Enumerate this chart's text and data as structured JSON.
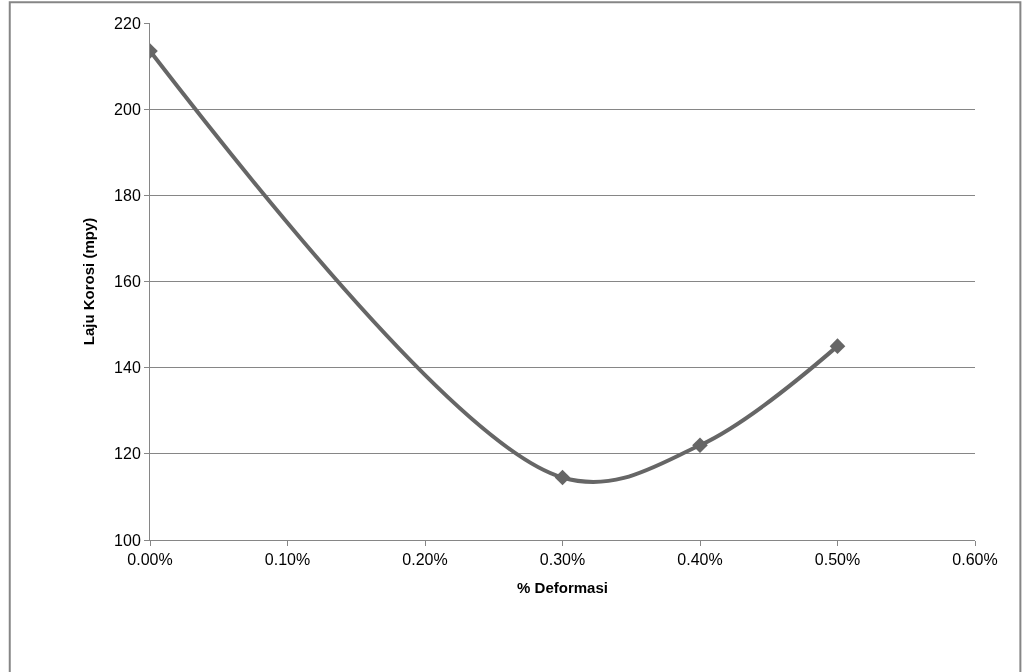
{
  "chart_data": {
    "type": "line",
    "xlabel": "% Deformasi",
    "ylabel": "Laju Korosi (mpy)",
    "x": [
      0,
      0.3,
      0.4,
      0.5
    ],
    "series": [
      {
        "color": "#666666",
        "values": [
          213.5,
          114.5,
          122,
          145
        ]
      }
    ],
    "xlim": [
      0,
      0.6
    ],
    "xticks": [
      {
        "value": 0,
        "label": "0.00%"
      },
      {
        "value": 0.1,
        "label": "0.10%"
      },
      {
        "value": 0.2,
        "label": "0.20%"
      },
      {
        "value": 0.3,
        "label": "0.30%"
      },
      {
        "value": 0.4,
        "label": "0.40%"
      },
      {
        "value": 0.5,
        "label": "0.50%"
      },
      {
        "value": 0.6,
        "label": "0.60%"
      }
    ],
    "ylim": [
      100,
      220
    ],
    "yticks": [
      100,
      120,
      140,
      160,
      180,
      200,
      220
    ],
    "grid": "y",
    "marker": "diamond",
    "line_style": "solid"
  }
}
